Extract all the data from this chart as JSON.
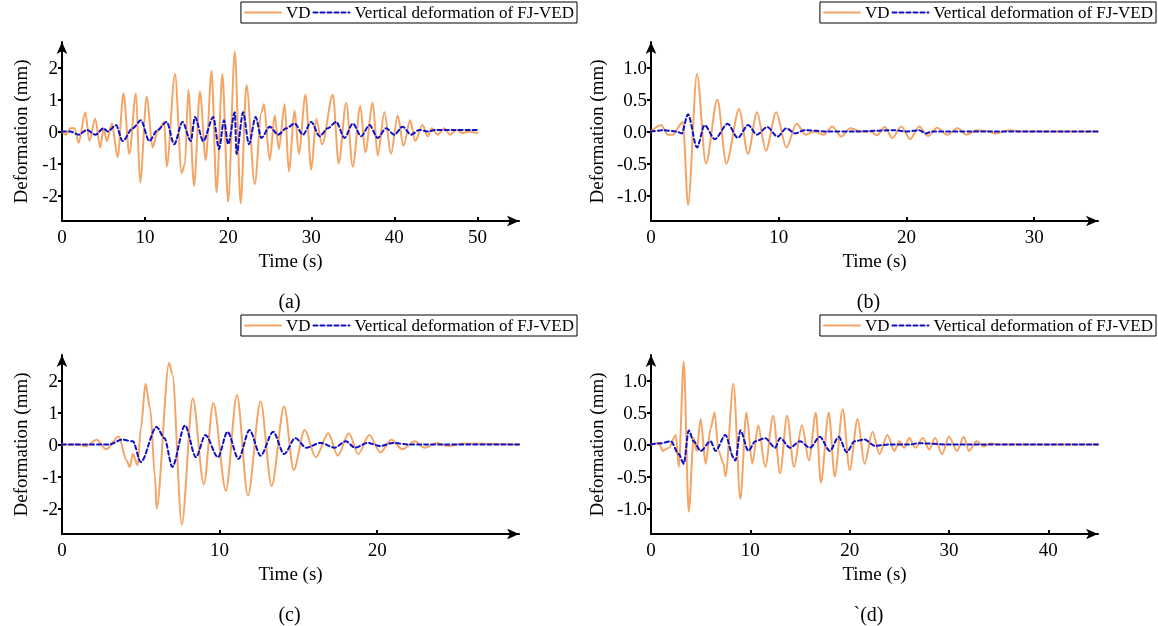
{
  "chart_data": [
    {
      "type": "line",
      "xlabel": "Time (s)",
      "ylabel": "Deformation (mm)",
      "annotations": [
        "(a)"
      ],
      "xlim": [
        0,
        55
      ],
      "xticks": [
        0,
        10,
        20,
        30,
        40,
        50
      ],
      "ylim": [
        -2.8,
        2.8
      ],
      "yticks": [
        -2,
        -1,
        0,
        1,
        2
      ],
      "grid": false,
      "legend": "top right",
      "marker": "none",
      "series": [
        {
          "name": "VD",
          "color": "#f4a565",
          "line_style": "solid",
          "x": [
            0,
            0.5,
            1,
            1.5,
            2,
            2.8,
            3.3,
            4,
            4.6,
            5,
            5.4,
            6,
            6.7,
            7.4,
            8.1,
            8.9,
            9.4,
            10.2,
            10.9,
            11.5,
            12.3,
            12.6,
            13.6,
            14.4,
            14.8,
            15.2,
            15.9,
            16.6,
            17.3,
            18,
            18.6,
            19.3,
            20,
            20.8,
            21.5,
            22.2,
            23.2,
            24,
            24.3,
            25,
            25.6,
            26.1,
            26.8,
            27.3,
            28,
            28.5,
            29.3,
            30,
            30.6,
            31.3,
            32.6,
            33.3,
            34.2,
            35,
            35.9,
            36.5,
            37.4,
            38,
            38.8,
            39.6,
            40.4,
            41.1,
            41.9,
            42.5,
            43.4,
            44,
            44.5,
            45.2,
            46,
            46.7,
            47.5,
            48.2,
            49,
            50
          ],
          "values": [
            0,
            -0.1,
            0.1,
            0.1,
            -0.35,
            0.6,
            -0.3,
            0.4,
            -0.5,
            0.1,
            -0.3,
            0.25,
            -0.8,
            1.2,
            -0.7,
            1.2,
            -1.6,
            1.1,
            -0.5,
            0,
            0.3,
            -1.1,
            1.8,
            -1.3,
            -1,
            1.3,
            -1.7,
            1.25,
            -0.9,
            1.9,
            -1.9,
            1.8,
            -2.2,
            2.5,
            -2.25,
            1.45,
            -1.65,
            0.6,
            0.85,
            -0.9,
            0.5,
            -0.55,
            0.85,
            -1.25,
            0.65,
            -0.7,
            1.15,
            -1.2,
            0.4,
            -0.4,
            1.15,
            -1,
            0.9,
            -1.1,
            0.8,
            -0.65,
            0.9,
            -0.75,
            0.6,
            -0.7,
            0.5,
            -0.45,
            0.35,
            -0.3,
            0.2,
            -0.15,
            0.1,
            -0.1,
            0.1,
            -0.1,
            0.05,
            -0.05,
            0,
            -0.05
          ]
        },
        {
          "name": "Vertical deformation of FJ-VED",
          "color": "#1010c8",
          "line_style": "dashed",
          "x": [
            0,
            1,
            2,
            3,
            4,
            5,
            5.5,
            6.5,
            7.3,
            8.5,
            9.5,
            10.5,
            11.5,
            12.6,
            13.5,
            14.5,
            15.5,
            16,
            17,
            18.2,
            18.9,
            19.5,
            20,
            20.8,
            21,
            21.8,
            22.5,
            23.3,
            24,
            25,
            26,
            27,
            28,
            29,
            30,
            31,
            32,
            33,
            34,
            35,
            36,
            37,
            38,
            39,
            40,
            41,
            42,
            43,
            44,
            45,
            47,
            50
          ],
          "values": [
            0,
            0,
            -0.1,
            0.05,
            -0.1,
            0.1,
            0,
            0.2,
            -0.3,
            0.1,
            0.35,
            -0.3,
            0.05,
            0.3,
            -0.4,
            0.3,
            -0.3,
            0.45,
            -0.3,
            0.45,
            -0.55,
            0.35,
            -0.4,
            0.6,
            -0.7,
            0.6,
            -0.4,
            0.45,
            -0.2,
            0.15,
            -0.1,
            0.1,
            0.25,
            -0.1,
            0.3,
            -0.15,
            0.1,
            0.3,
            -0.2,
            0.25,
            -0.15,
            0.2,
            -0.2,
            0.1,
            -0.1,
            0.15,
            -0.1,
            0.05,
            0,
            0.05,
            0.05,
            0.05
          ]
        }
      ]
    },
    {
      "type": "line",
      "xlabel": "Time (s)",
      "ylabel": "Deformation (mm)",
      "annotations": [
        "(b)"
      ],
      "xlim": [
        0,
        35
      ],
      "xticks": [
        0,
        10,
        20,
        30
      ],
      "ylim": [
        -1.4,
        1.4
      ],
      "yticks": [
        {
          "value": -1,
          "label": "-1.0"
        },
        {
          "value": -0.5,
          "label": "-0.5"
        },
        {
          "value": 0,
          "label": "0.0"
        },
        {
          "value": 0.5,
          "label": "0.5"
        },
        {
          "value": 1,
          "label": "1.0"
        }
      ],
      "grid": false,
      "legend": "top right",
      "marker": "none",
      "series": [
        {
          "name": "VD",
          "color": "#f4a565",
          "line_style": "solid",
          "x": [
            0,
            0.8,
            1.3,
            1.7,
            2.5,
            2.9,
            3.6,
            4.3,
            5.2,
            5.9,
            6.9,
            7.6,
            8.3,
            9,
            9.8,
            10.6,
            11.4,
            12.1,
            12.8,
            13.5,
            14.2,
            14.9,
            15.6,
            16.5,
            17.2,
            17.7,
            18.3,
            18.9,
            19.6,
            20.3,
            21,
            21.7,
            22.4,
            23.2,
            24,
            24.7,
            25.5,
            26.5,
            27,
            28,
            29,
            35
          ],
          "values": [
            0,
            0.1,
            -0.05,
            -0.05,
            0.15,
            -1.15,
            0.9,
            -0.5,
            0.5,
            -0.5,
            0.35,
            -0.35,
            0.3,
            -0.3,
            0.3,
            -0.25,
            0.12,
            -0.05,
            0,
            -0.05,
            0.08,
            -0.08,
            0.05,
            0,
            0,
            -0.06,
            0.07,
            -0.1,
            0.08,
            -0.12,
            0.08,
            -0.07,
            0.06,
            -0.05,
            0.05,
            -0.05,
            0.02,
            0,
            -0.03,
            0.02,
            0,
            0
          ]
        },
        {
          "name": "Vertical deformation of FJ-VED",
          "color": "#1010c8",
          "line_style": "dashed",
          "x": [
            0,
            1,
            2,
            2.4,
            2.9,
            3.6,
            4.2,
            5,
            6,
            6.8,
            7.6,
            8.3,
            9.1,
            9.9,
            10.6,
            11.3,
            12,
            14,
            16,
            19,
            20,
            21,
            21.5,
            22,
            25,
            35
          ],
          "values": [
            0,
            0.02,
            0,
            -0.03,
            0.27,
            -0.25,
            0.1,
            -0.12,
            0.12,
            -0.1,
            0.1,
            -0.05,
            0.07,
            -0.08,
            0.05,
            -0.03,
            0.02,
            0,
            0,
            0.02,
            0,
            0.02,
            -0.03,
            0,
            0,
            0
          ]
        }
      ]
    },
    {
      "type": "line",
      "xlabel": "Time (s)",
      "ylabel": "Deformation (mm)",
      "annotations": [
        "(c)"
      ],
      "xlim": [
        0,
        29
      ],
      "xticks": [
        0,
        10,
        20
      ],
      "ylim": [
        -2.8,
        2.8
      ],
      "yticks": [
        -2,
        -1,
        0,
        1,
        2
      ],
      "grid": false,
      "legend": "top right",
      "marker": "none",
      "series": [
        {
          "name": "VD",
          "color": "#f4a565",
          "line_style": "solid",
          "x": [
            0,
            1,
            1.5,
            2.2,
            2.8,
            3.6,
            4.1,
            4.3,
            4.5,
            4.8,
            5,
            5.3,
            5.6,
            5.9,
            6,
            6.8,
            7,
            7.6,
            8.3,
            9,
            9.6,
            10.4,
            11.1,
            11.8,
            12.6,
            13.3,
            14.1,
            14.7,
            15.4,
            16.1,
            16.9,
            17.5,
            18.2,
            18.8,
            19.5,
            20.2,
            20.9,
            21.6,
            22.4,
            23,
            23.8,
            24.5,
            25.5,
            29
          ],
          "values": [
            0,
            0,
            -0.05,
            0.15,
            -0.15,
            0.25,
            -0.5,
            -0.7,
            -0.3,
            -0.65,
            0.5,
            1.9,
            1.1,
            -1,
            -2,
            2.55,
            2.2,
            -2.5,
            1.45,
            -1.25,
            1.3,
            -1.45,
            1.55,
            -1.6,
            1.35,
            -1.3,
            1.2,
            -0.8,
            0.45,
            -0.4,
            0.35,
            -0.35,
            0.35,
            -0.3,
            0.3,
            -0.25,
            0.15,
            -0.15,
            0.1,
            -0.1,
            0.05,
            -0.05,
            0.03,
            0
          ]
        },
        {
          "name": "Vertical deformation of FJ-VED",
          "color": "#1010c8",
          "line_style": "dashed",
          "x": [
            0,
            3,
            3.8,
            4.5,
            5,
            6,
            6.5,
            7,
            7.8,
            8.5,
            9.1,
            9.9,
            10.5,
            11.2,
            11.9,
            12.6,
            13.4,
            14.1,
            14.8,
            15.5,
            16.4,
            17.3,
            18,
            18.6,
            19.4,
            20.2,
            21,
            22,
            29
          ],
          "values": [
            0,
            0,
            0.15,
            0.1,
            -0.55,
            0.55,
            0.2,
            -0.7,
            0.6,
            -0.4,
            0.3,
            -0.4,
            0.4,
            -0.45,
            0.45,
            -0.35,
            0.4,
            -0.3,
            0.2,
            -0.1,
            0.05,
            -0.1,
            0.1,
            -0.1,
            0.05,
            -0.05,
            0.05,
            0,
            0
          ]
        }
      ]
    },
    {
      "type": "line",
      "xlabel": "Time (s)",
      "ylabel": "Deformation (mm)",
      "annotations": [
        "`(d)"
      ],
      "xlim": [
        0,
        45
      ],
      "xticks": [
        0,
        10,
        20,
        30,
        40
      ],
      "ylim": [
        -1.4,
        1.4
      ],
      "yticks": [
        {
          "value": -1,
          "label": "-1.0"
        },
        {
          "value": -0.5,
          "label": "-0.5"
        },
        {
          "value": 0,
          "label": "0.0"
        },
        {
          "value": 0.5,
          "label": "0.5"
        },
        {
          "value": 1,
          "label": "1.0"
        }
      ],
      "grid": false,
      "legend": "top right",
      "marker": "none",
      "series": [
        {
          "name": "VD",
          "color": "#f4a565",
          "line_style": "solid",
          "x": [
            0,
            0.8,
            1.2,
            1.8,
            2.5,
            2.8,
            3.3,
            3.8,
            4.3,
            4.6,
            5,
            5.5,
            6,
            6.4,
            6.8,
            7.3,
            7.5,
            8.3,
            9,
            9.6,
            10.2,
            10.8,
            11.5,
            12.3,
            13,
            13.7,
            14.4,
            15.2,
            15.9,
            16.6,
            17.1,
            17.9,
            18.5,
            19.3,
            20,
            20.8,
            21.5,
            22.3,
            23,
            23.8,
            24.5,
            25,
            25.5,
            26,
            26.6,
            27.4,
            28,
            28.6,
            29.3,
            30,
            30.8,
            31.5,
            32,
            32.8,
            33.5,
            34.2,
            35,
            45
          ],
          "values": [
            0,
            0.02,
            -0.1,
            -0.05,
            0.15,
            -0.35,
            1.3,
            -1.05,
            0.1,
            -0.1,
            0.4,
            -0.3,
            0.25,
            0.5,
            -0.1,
            -0.3,
            -0.5,
            0.95,
            -0.85,
            0.5,
            -0.3,
            0.3,
            -0.35,
            0.45,
            -0.45,
            0.45,
            -0.35,
            0.3,
            -0.25,
            0.5,
            -0.6,
            0.5,
            -0.5,
            0.55,
            -0.4,
            0.4,
            -0.3,
            0.2,
            -0.15,
            0.15,
            -0.1,
            0.05,
            -0.05,
            0.1,
            -0.05,
            0.1,
            -0.08,
            0.1,
            -0.15,
            0.12,
            -0.1,
            0.12,
            -0.1,
            0.05,
            -0.03,
            0.02,
            0,
            0
          ]
        },
        {
          "name": "Vertical deformation of FJ-VED",
          "color": "#1010c8",
          "line_style": "dashed",
          "x": [
            0,
            1,
            2,
            2.8,
            3.3,
            3.8,
            4.3,
            5,
            6,
            6.5,
            7.5,
            8.3,
            8.5,
            9,
            9.8,
            10.5,
            11.5,
            12.5,
            13,
            14,
            15,
            16,
            17,
            18,
            18.9,
            19.7,
            20.5,
            21.5,
            22.5,
            24,
            26,
            27,
            30,
            45
          ],
          "values": [
            0,
            0.02,
            0.05,
            -0.15,
            -0.3,
            0.22,
            0.05,
            -0.1,
            0.05,
            -0.1,
            0.15,
            -0.2,
            -0.25,
            0.22,
            -0.1,
            0.05,
            0.1,
            -0.05,
            0.1,
            -0.05,
            0.05,
            -0.05,
            0.12,
            -0.1,
            0.12,
            -0.12,
            0.05,
            0.08,
            -0.02,
            0,
            0,
            0.02,
            0,
            0
          ]
        }
      ]
    }
  ]
}
